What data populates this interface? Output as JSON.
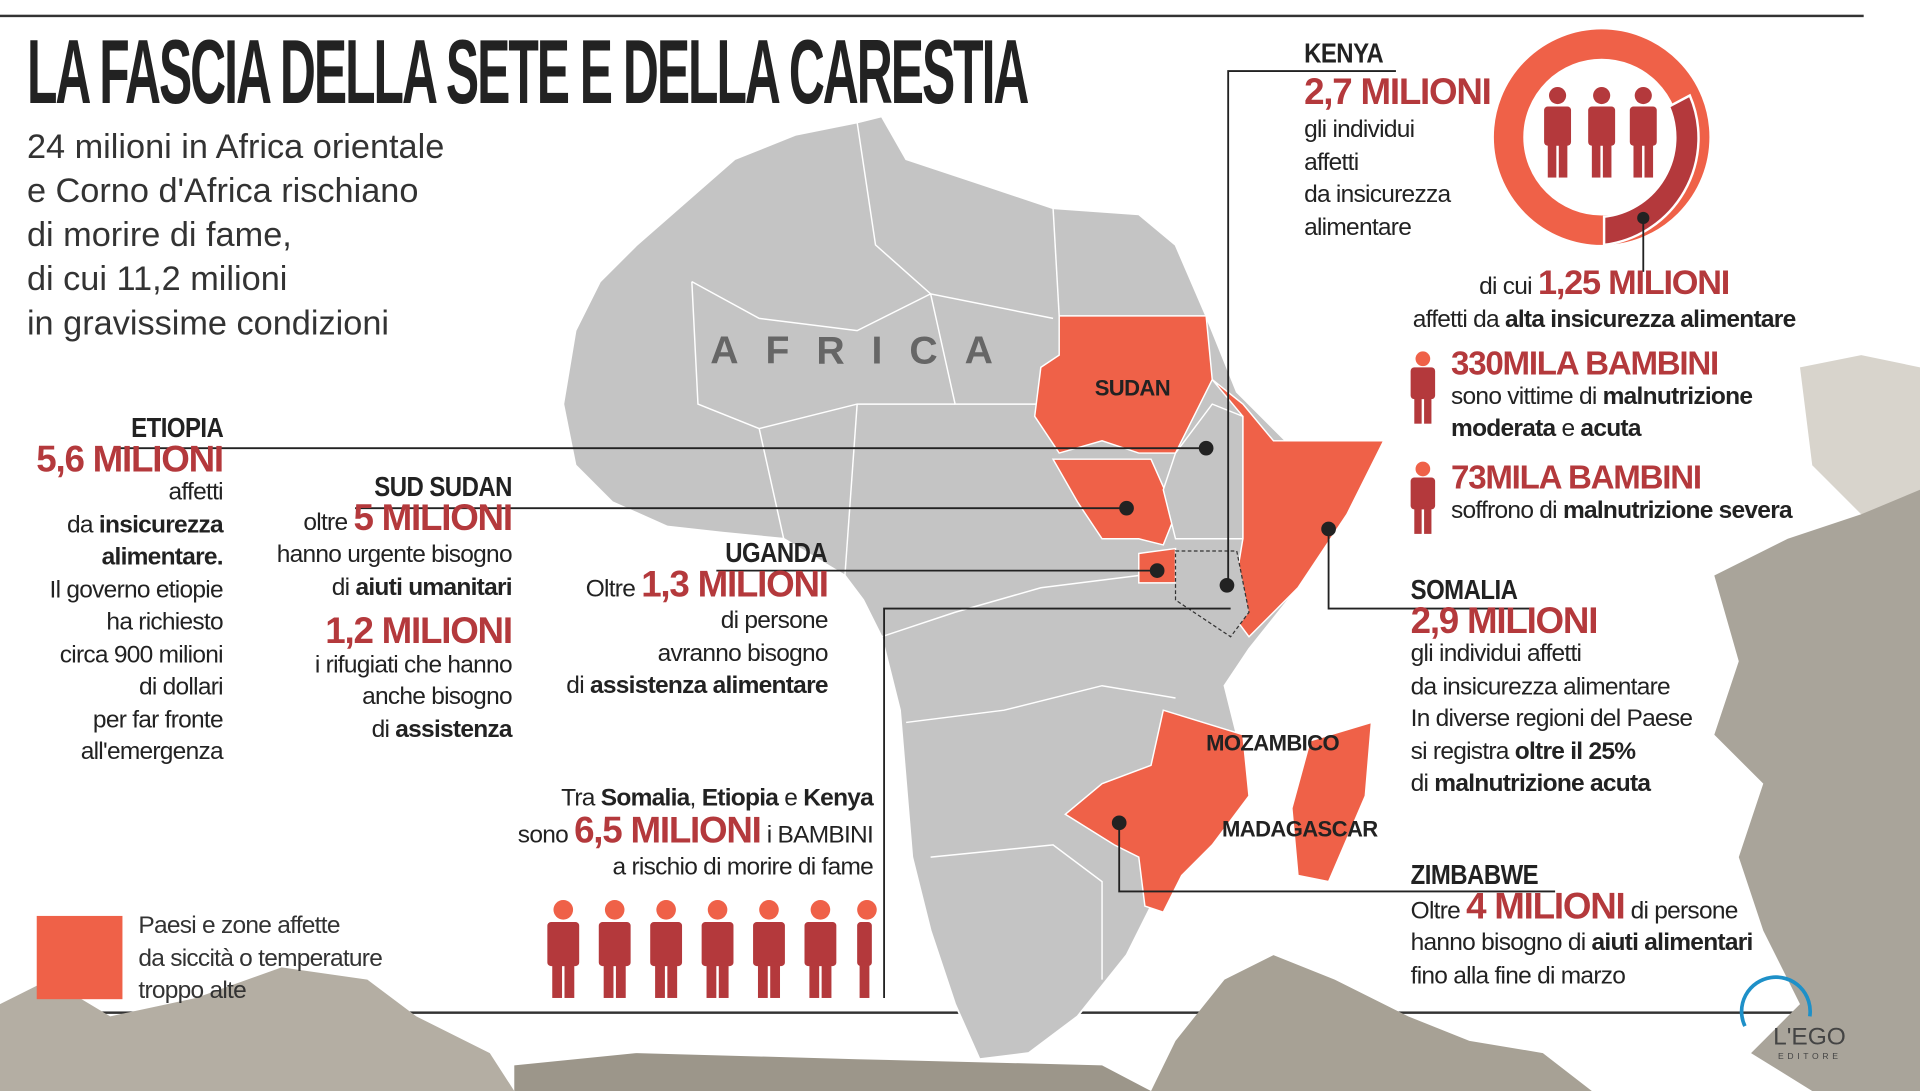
{
  "title": "LA FASCIA DELLA SETE E DELLA CARESTIA",
  "subtitle": [
    "24 milioni in Africa orientale",
    "e Corno d'Africa rischiano",
    "di morire di fame,",
    "di cui 11,2 milioni",
    "in gravissime condizioni"
  ],
  "colors": {
    "affected": "#ef6148",
    "accent_dark": "#b4393c",
    "map_grey": "#c4c4c4",
    "text": "#222222"
  },
  "map": {
    "label": "AFRICA",
    "country_labels": [
      "SUDAN",
      "MOZAMBICO",
      "MADAGASCAR"
    ]
  },
  "kenya": {
    "header": "KENYA",
    "figure": "2,7 MILIONI",
    "lines": [
      "gli individui",
      "affetti",
      "da insicurezza",
      "alimentare"
    ],
    "sub_prefix": "di cui",
    "sub_figure": "1,25 MILIONI",
    "sub_text_a": "affetti da ",
    "sub_text_b": "alta insicurezza alimentare",
    "children1_figure": "330MILA BAMBINI",
    "children1_a": "sono vittime di ",
    "children1_b": "malnutrizione",
    "children1_c": "moderata",
    "children1_d": " e ",
    "children1_e": "acuta",
    "children2_figure": "73MILA BAMBINI",
    "children2_a": "soffrono di ",
    "children2_b": "malnutrizione severa"
  },
  "etiopia": {
    "header": "ETIOPIA",
    "figure": "5,6 MILIONI",
    "l1": "affetti",
    "l2a": "da ",
    "l2b": "insicurezza",
    "l3": "alimentare.",
    "rest": [
      "Il governo etiopie",
      "ha richiesto",
      "circa 900 milioni",
      "di dollari",
      "per far fronte",
      "all'emergenza"
    ]
  },
  "sud_sudan": {
    "header": "SUD SUDAN",
    "prefix": "oltre",
    "figure": "5 MILIONI",
    "l1": "hanno urgente bisogno",
    "l2a": "di ",
    "l2b": "aiuti umanitari",
    "figure2": "1,2 MILIONI",
    "l3": "i rifugiati che hanno",
    "l4": "anche bisogno",
    "l5a": "di ",
    "l5b": "assistenza"
  },
  "uganda": {
    "header": "UGANDA",
    "prefix": "Oltre",
    "figure": "1,3 MILIONI",
    "l1": "di persone",
    "l2": "avranno bisogno",
    "l3a": "di ",
    "l3b": "assistenza alimentare"
  },
  "children": {
    "l1a": "Tra ",
    "l1b": "Somalia",
    "l1c": ", ",
    "l1d": "Etiopia",
    "l1e": " e ",
    "l1f": "Kenya",
    "prefix": "sono",
    "figure": "6,5 MILIONI",
    "suffix": "i BAMBINI",
    "l3": "a rischio di morire di fame"
  },
  "somalia": {
    "header": "SOMALIA",
    "figure": "2,9 MILIONI",
    "l1": "gli individui affetti",
    "l2": "da insicurezza alimentare",
    "l3": "In diverse regioni del Paese",
    "l4a": "si registra ",
    "l4b": "oltre il 25%",
    "l5a": "di ",
    "l5b": "malnutrizione acuta"
  },
  "zimbabwe": {
    "header": "ZIMBABWE",
    "prefix": "Oltre",
    "figure": "4 MILIONI",
    "suffix": "di persone",
    "l2a": "hanno bisogno di ",
    "l2b": "aiuti alimentari",
    "l3": "fino alla fine di marzo"
  },
  "legend": [
    "Paesi e zone affette",
    "da siccità o temperature",
    "troppo alte"
  ],
  "logo": {
    "name": "L'EGO",
    "sub": "EDITORE"
  }
}
